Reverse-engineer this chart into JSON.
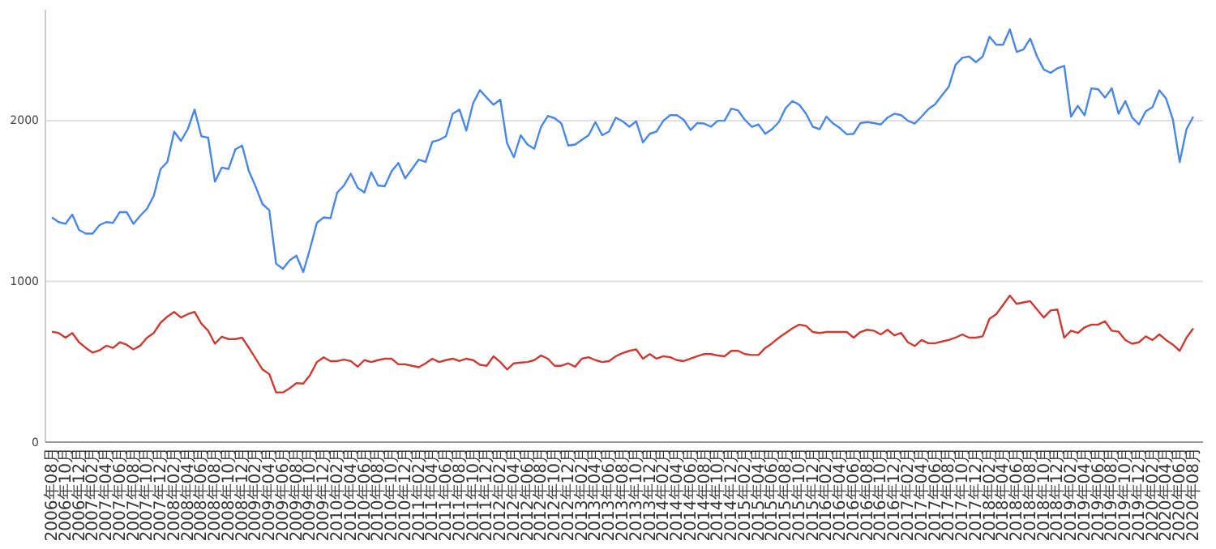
{
  "chart_data": {
    "type": "line",
    "categories": [
      "2006年08月",
      null,
      "2006年10月",
      null,
      "2006年12月",
      null,
      "2007年02月",
      null,
      "2007年04月",
      null,
      "2007年06月",
      null,
      "2007年08月",
      null,
      "2007年10月",
      null,
      "2007年12月",
      null,
      "2008年02月",
      null,
      "2008年04月",
      null,
      "2008年06月",
      null,
      "2008年08月",
      null,
      "2008年10月",
      null,
      "2008年12月",
      null,
      "2009年02月",
      null,
      "2009年04月",
      null,
      "2009年06月",
      null,
      "2009年08月",
      null,
      "2009年10月",
      null,
      "2009年12月",
      null,
      "2010年02月",
      null,
      "2010年04月",
      null,
      "2010年06月",
      null,
      "2010年08月",
      null,
      "2010年10月",
      null,
      "2010年12月",
      null,
      "2011年02月",
      null,
      "2011年04月",
      null,
      "2011年06月",
      null,
      "2011年08月",
      null,
      "2011年10月",
      null,
      "2011年12月",
      null,
      "2012年02月",
      null,
      "2012年04月",
      null,
      "2012年06月",
      null,
      "2012年08月",
      null,
      "2012年10月",
      null,
      "2012年12月",
      null,
      "2013年02月",
      null,
      "2013年04月",
      null,
      "2013年06月",
      null,
      "2013年08月",
      null,
      "2013年10月",
      null,
      "2013年12月",
      null,
      "2014年02月",
      null,
      "2014年04月",
      null,
      "2014年06月",
      null,
      "2014年08月",
      null,
      "2014年10月",
      null,
      "2014年12月",
      null,
      "2015年02月",
      null,
      "2015年04月",
      null,
      "2015年06月",
      null,
      "2015年08月",
      null,
      "2015年10月",
      null,
      "2015年12月",
      null,
      "2016年02月",
      null,
      "2016年04月",
      null,
      "2016年06月",
      null,
      "2016年08月",
      null,
      "2016年10月",
      null,
      "2016年12月",
      null,
      "2017年02月",
      null,
      "2017年04月",
      null,
      "2017年06月",
      null,
      "2017年08月",
      null,
      "2017年10月",
      null,
      "2017年12月",
      null,
      "2018年02月",
      null,
      "2018年04月",
      null,
      "2018年06月",
      null,
      "2018年08月",
      null,
      "2018年10月",
      null,
      "2018年12月",
      null,
      "2019年02月",
      null,
      "2019年04月",
      null,
      "2019年06月",
      null,
      "2019年08月",
      null,
      "2019年10月",
      null,
      "2019年12月",
      null,
      "2020年02月",
      null,
      "2020年04月",
      null,
      "2020年06月",
      null,
      "2020年08月"
    ],
    "series": [
      {
        "color": "#4a86e8",
        "values": [
          1398,
          1369,
          1358,
          1416,
          1320,
          1297,
          1297,
          1350,
          1369,
          1364,
          1431,
          1431,
          1358,
          1408,
          1452,
          1533,
          1699,
          1743,
          1932,
          1874,
          1947,
          2069,
          1903,
          1894,
          1620,
          1708,
          1699,
          1821,
          1845,
          1685,
          1589,
          1481,
          1443,
          1110,
          1078,
          1131,
          1160,
          1058,
          1204,
          1364,
          1398,
          1393,
          1553,
          1597,
          1670,
          1583,
          1553,
          1679,
          1597,
          1592,
          1685,
          1737,
          1641,
          1699,
          1758,
          1743,
          1868,
          1880,
          1903,
          2043,
          2069,
          1938,
          2108,
          2190,
          2143,
          2099,
          2131,
          1859,
          1772,
          1909,
          1851,
          1825,
          1962,
          2029,
          2015,
          1982,
          1845,
          1851,
          1880,
          1909,
          1991,
          1909,
          1932,
          2019,
          1996,
          1962,
          1996,
          1865,
          1918,
          1932,
          1999,
          2034,
          2034,
          2005,
          1941,
          1985,
          1982,
          1962,
          1999,
          1999,
          2075,
          2063,
          2005,
          1962,
          1976,
          1918,
          1947,
          1991,
          2078,
          2122,
          2099,
          2043,
          1962,
          1947,
          2025,
          1982,
          1953,
          1915,
          1918,
          1985,
          1991,
          1985,
          1976,
          2019,
          2043,
          2034,
          1999,
          1982,
          2025,
          2072,
          2102,
          2157,
          2210,
          2347,
          2391,
          2399,
          2364,
          2399,
          2522,
          2472,
          2472,
          2568,
          2428,
          2443,
          2510,
          2399,
          2318,
          2297,
          2326,
          2341,
          2025,
          2092,
          2034,
          2201,
          2195,
          2143,
          2201,
          2043,
          2122,
          2019,
          1976,
          2058,
          2084,
          2189,
          2137,
          2005,
          1743,
          1947,
          2025
        ]
      },
      {
        "color": "#cc3b33",
        "values": [
          687,
          679,
          650,
          679,
          621,
          586,
          557,
          571,
          600,
          586,
          621,
          606,
          577,
          600,
          650,
          679,
          743,
          781,
          810,
          775,
          796,
          810,
          737,
          693,
          612,
          656,
          641,
          641,
          650,
          586,
          519,
          452,
          423,
          309,
          309,
          335,
          367,
          364,
          417,
          498,
          528,
          504,
          504,
          513,
          504,
          469,
          510,
          498,
          510,
          519,
          519,
          484,
          484,
          475,
          466,
          490,
          519,
          498,
          510,
          519,
          504,
          519,
          510,
          481,
          475,
          534,
          498,
          452,
          490,
          495,
          498,
          510,
          539,
          519,
          475,
          475,
          490,
          469,
          519,
          528,
          510,
          498,
          504,
          534,
          554,
          568,
          577,
          519,
          548,
          519,
          534,
          528,
          510,
          504,
          519,
          534,
          548,
          548,
          539,
          534,
          568,
          568,
          548,
          542,
          542,
          586,
          615,
          650,
          679,
          708,
          731,
          723,
          685,
          679,
          685,
          685,
          685,
          685,
          650,
          685,
          699,
          693,
          670,
          699,
          664,
          679,
          621,
          598,
          635,
          615,
          615,
          626,
          635,
          650,
          670,
          650,
          650,
          658,
          767,
          796,
          854,
          912,
          860,
          869,
          877,
          825,
          775,
          819,
          825,
          650,
          693,
          679,
          714,
          731,
          731,
          752,
          693,
          687,
          635,
          612,
          621,
          658,
          635,
          670,
          635,
          606,
          568,
          650,
          708
        ]
      }
    ],
    "ylim": [
      0,
      2690
    ],
    "yticks": [
      0,
      1000,
      2000
    ],
    "grid": "y"
  }
}
